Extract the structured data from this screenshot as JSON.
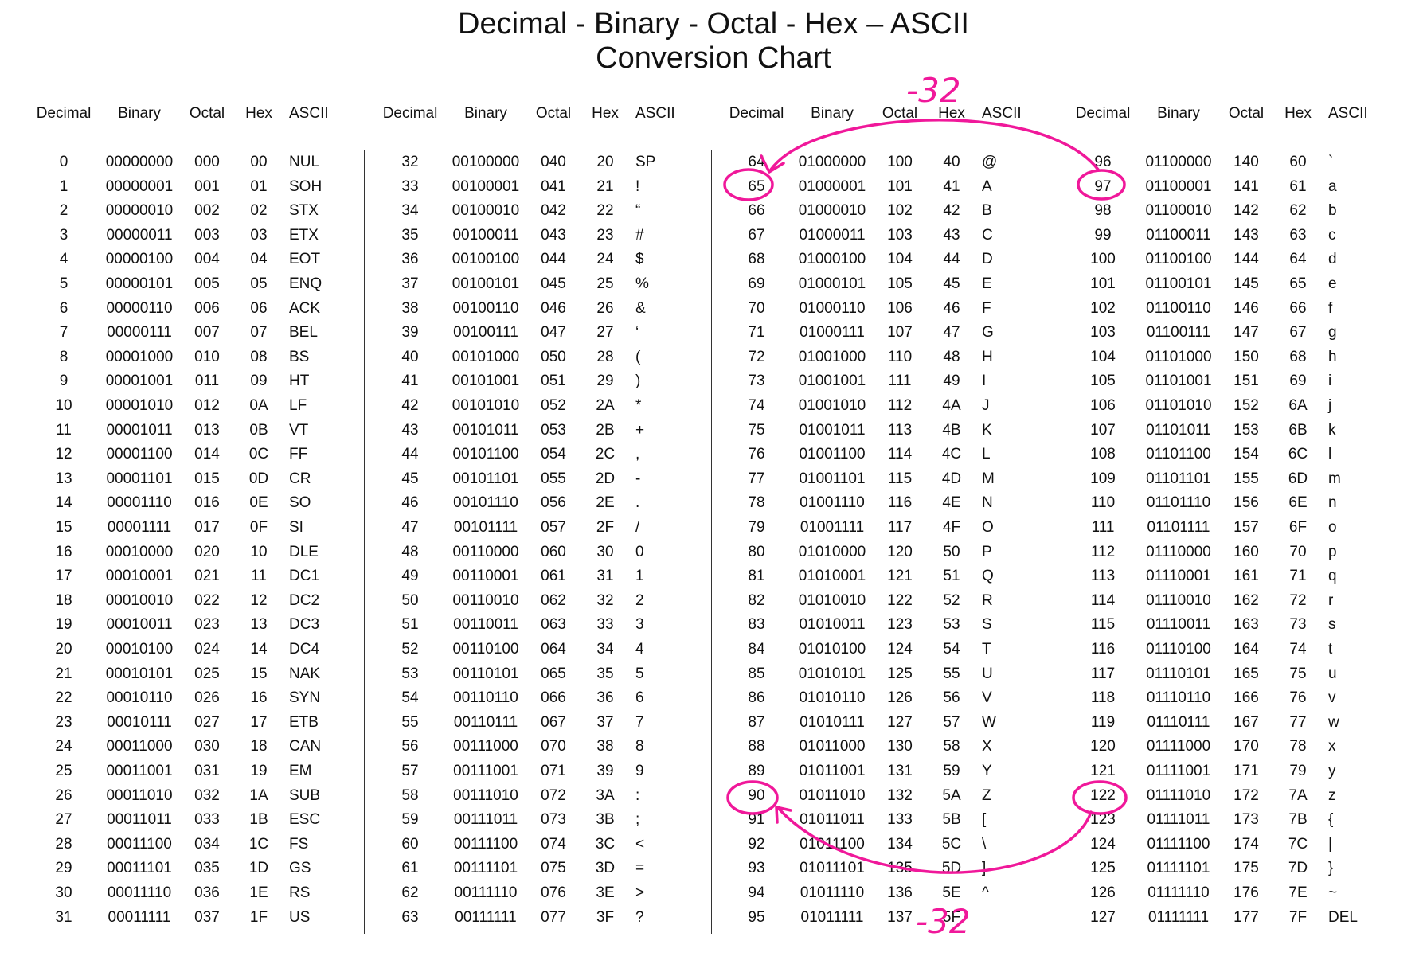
{
  "title": {
    "line1": "Decimal - Binary - Octal - Hex – ASCII",
    "line2": "Conversion Chart"
  },
  "headers": [
    "Decimal",
    "Binary",
    "Octal",
    "Hex",
    "ASCII"
  ],
  "ascii_names": [
    "NUL",
    "SOH",
    "STX",
    "ETX",
    "EOT",
    "ENQ",
    "ACK",
    "BEL",
    "BS",
    "HT",
    "LF",
    "VT",
    "FF",
    "CR",
    "SO",
    "SI",
    "DLE",
    "DC1",
    "DC2",
    "DC3",
    "DC4",
    "NAK",
    "SYN",
    "ETB",
    "CAN",
    "EM",
    "SUB",
    "ESC",
    "FS",
    "GS",
    "RS",
    "US",
    "SP",
    "!",
    "“",
    "#",
    "$",
    "%",
    "&",
    "‘",
    "(",
    ")",
    "*",
    "+",
    ",",
    "-",
    ".",
    "/",
    "0",
    "1",
    "2",
    "3",
    "4",
    "5",
    "6",
    "7",
    "8",
    "9",
    ":",
    ";",
    "<",
    "=",
    ">",
    "?",
    "@",
    "A",
    "B",
    "C",
    "D",
    "E",
    "F",
    "G",
    "H",
    "I",
    "J",
    "K",
    "L",
    "M",
    "N",
    "O",
    "P",
    "Q",
    "R",
    "S",
    "T",
    "U",
    "V",
    "W",
    "X",
    "Y",
    "Z",
    "[",
    "\\",
    "]",
    "^",
    "",
    "`",
    "a",
    "b",
    "c",
    "d",
    "e",
    "f",
    "g",
    "h",
    "i",
    "j",
    "k",
    "l",
    "m",
    "n",
    "o",
    "p",
    "q",
    "r",
    "s",
    "t",
    "u",
    "v",
    "w",
    "x",
    "y",
    "z",
    "{",
    "|",
    "}",
    "~",
    "DEL"
  ],
  "annotations": {
    "top_note": "-32",
    "bottom_note": "-32",
    "color": "#f0189a",
    "circled_values": [
      "65",
      "97",
      "90",
      "122"
    ]
  }
}
